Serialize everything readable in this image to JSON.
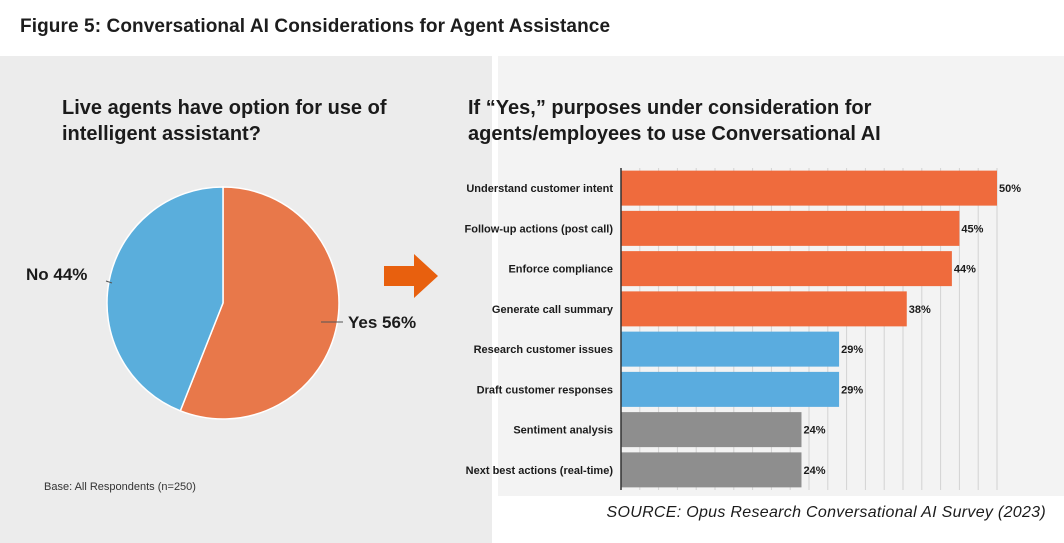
{
  "figure_title": "Figure 5: Conversational AI Considerations for Agent Assistance",
  "base_note": "Base: All Respondents (n=250)",
  "source_note": "SOURCE: Opus Research Conversational AI Survey (2023)",
  "colors": {
    "orange": "#EF6B3D",
    "blue": "#5AACDF",
    "gray": "#8E8E8E",
    "pie_orange": "#E8784A",
    "pie_blue": "#5AAEDC",
    "arrow": "#E8600E"
  },
  "chart_data": [
    {
      "type": "pie",
      "title": "Live agents have option for use of intelligent assistant?",
      "slices": [
        {
          "label": "Yes 56%",
          "value": 56,
          "color": "#E8784A"
        },
        {
          "label": "No 44%",
          "value": 44,
          "color": "#5AAEDC"
        }
      ]
    },
    {
      "type": "bar",
      "orientation": "horizontal",
      "title": "If “Yes,” purposes under consideration for agents/employees to use Conversational AI",
      "categories": [
        "Understand customer intent",
        "Follow-up actions (post call)",
        "Enforce compliance",
        "Generate call summary",
        "Research customer issues",
        "Draft customer responses",
        "Sentiment analysis",
        "Next best actions (real-time)"
      ],
      "values": [
        50,
        45,
        44,
        38,
        29,
        29,
        24,
        24
      ],
      "value_labels": [
        "50%",
        "45%",
        "44%",
        "38%",
        "29%",
        "29%",
        "24%",
        "24%"
      ],
      "bar_colors": [
        "#EF6B3D",
        "#EF6B3D",
        "#EF6B3D",
        "#EF6B3D",
        "#5AACDF",
        "#5AACDF",
        "#8E8E8E",
        "#8E8E8E"
      ],
      "xlim": [
        0,
        50
      ],
      "grid": true
    }
  ]
}
